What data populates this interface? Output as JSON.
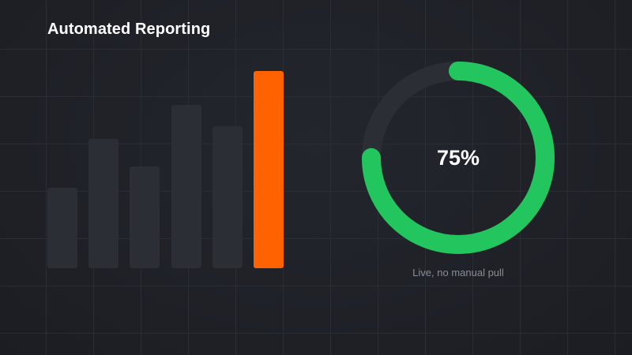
{
  "title": "Automated Reporting",
  "bar_chart": {
    "type": "bar",
    "values": [
      26,
      42,
      33,
      53,
      46,
      64
    ],
    "highlight_index": 5,
    "max": 64
  },
  "progress": {
    "value_label": "75%",
    "fraction": 0.75,
    "caption": "Live, no manual pull"
  },
  "colors": {
    "background": "#1e2026",
    "bar": "#2b2e35",
    "highlight_bar": "#ff6200",
    "ring_track": "#2b2e35",
    "ring_fill": "#22c55e",
    "grid": "#2a2d33"
  }
}
